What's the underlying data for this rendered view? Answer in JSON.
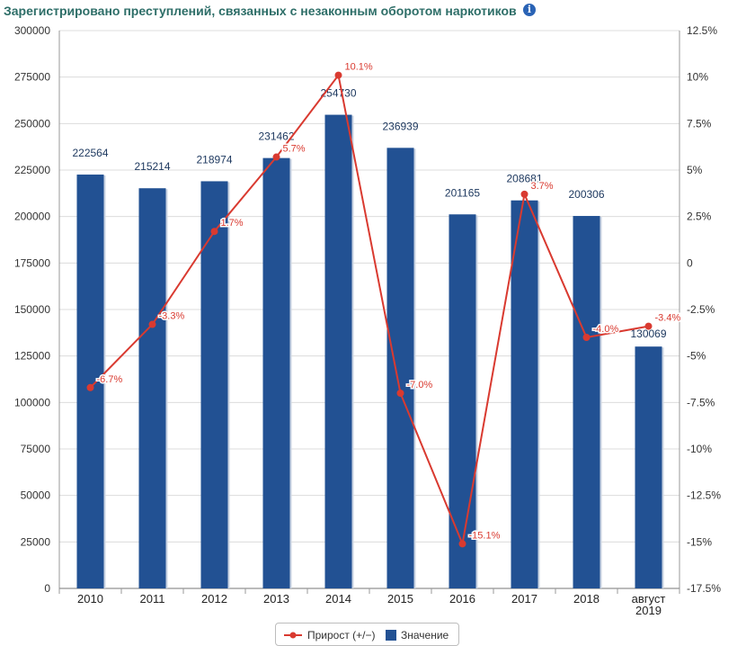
{
  "title": "Зарегистрировано преступлений, связанных с незаконным оборотом наркотиков",
  "info_icon": "info-icon",
  "chart_data": {
    "type": "bar",
    "categories": [
      "2010",
      "2011",
      "2012",
      "2013",
      "2014",
      "2015",
      "2016",
      "2017",
      "2018",
      "август|2019"
    ],
    "series": [
      {
        "name": "Значение",
        "type": "bar",
        "axis": "left",
        "color": "#225193",
        "values": [
          222564,
          215214,
          218974,
          231462,
          254730,
          236939,
          201165,
          208681,
          200306,
          130069
        ],
        "labels": [
          "222564",
          "215214",
          "218974",
          "231462",
          "254730",
          "236939",
          "201165",
          "208681",
          "200306",
          "130069"
        ]
      },
      {
        "name": "Прирост (+/−)",
        "type": "line",
        "axis": "right",
        "color": "#d93a30",
        "values": [
          -6.7,
          -3.3,
          1.7,
          5.7,
          10.1,
          -7.0,
          -15.1,
          3.7,
          -4.0,
          -3.4
        ],
        "labels": [
          "-6.7%",
          "-3.3%",
          "1.7%",
          "5.7%",
          "10.1%",
          "-7.0%",
          "-15.1%",
          "3.7%",
          "-4.0%",
          "-3.4%"
        ]
      }
    ],
    "y_left": {
      "min": 0,
      "max": 300000,
      "ticks": [
        "0",
        "25000",
        "50000",
        "75000",
        "100000",
        "125000",
        "150000",
        "175000",
        "200000",
        "225000",
        "250000",
        "275000",
        "300000"
      ]
    },
    "y_right": {
      "min": -17.5,
      "max": 12.5,
      "ticks": [
        "12.5%",
        "10%",
        "7.5%",
        "5%",
        "2.5%",
        "0",
        "-2.5%",
        "-5%",
        "-7.5%",
        "-10%",
        "-12.5%",
        "-15%",
        "-17.5%"
      ]
    },
    "grid": true,
    "legend": "bottom-center"
  }
}
